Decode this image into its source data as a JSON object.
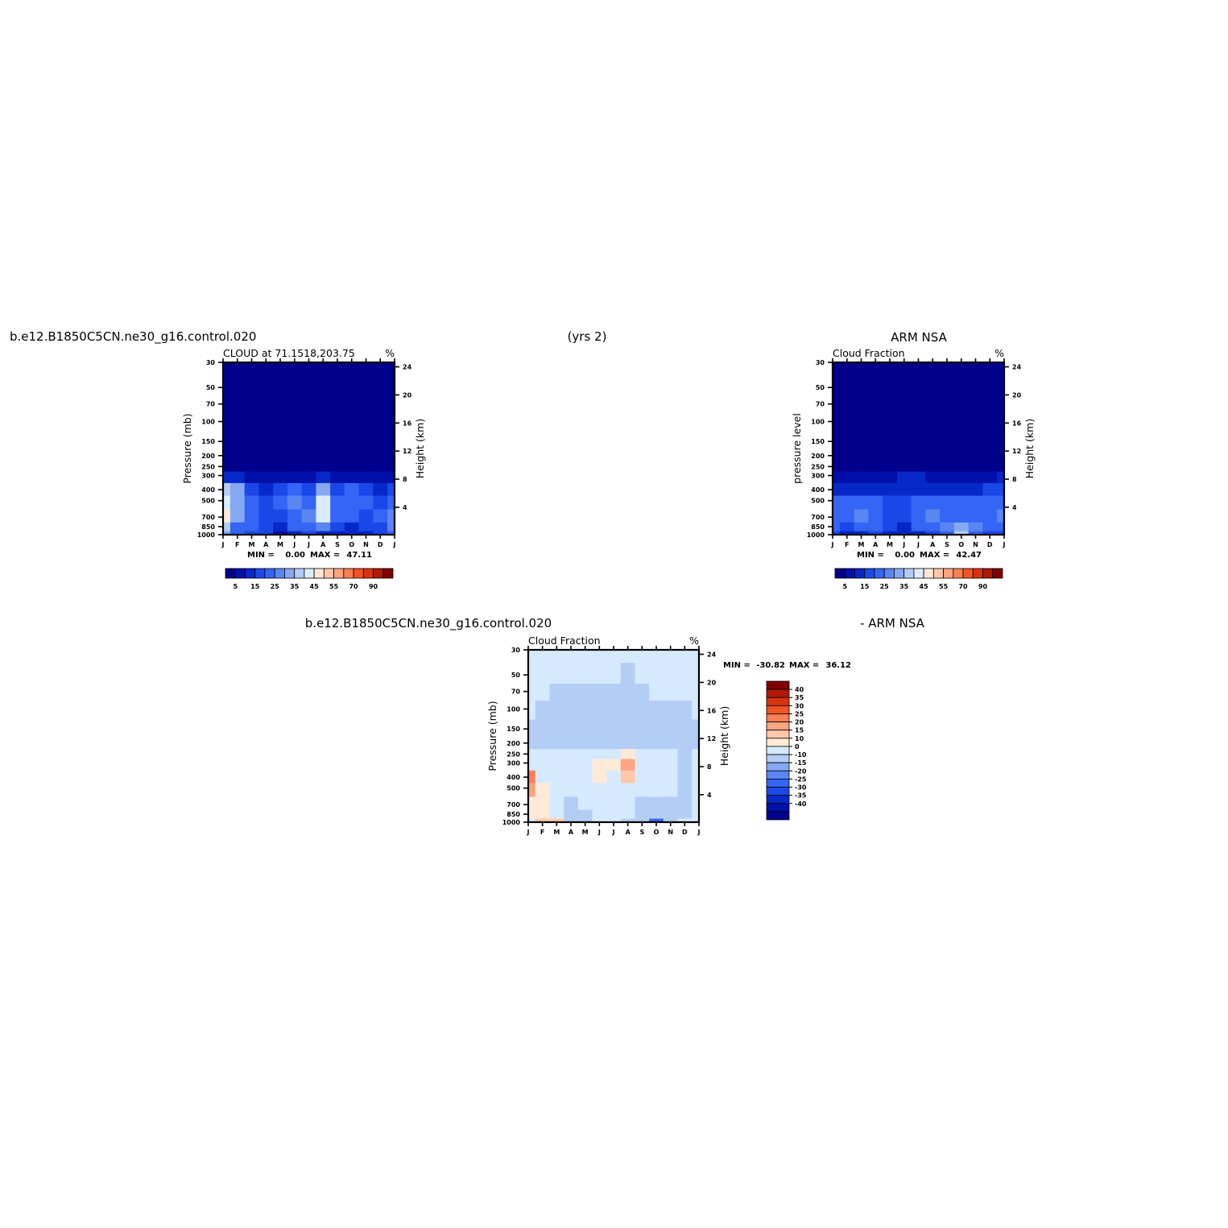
{
  "header": {
    "case_name": "b.e12.B1850C5CN.ne30_g16.control.020",
    "years": "(yrs 2)",
    "obs_name": "ARM NSA",
    "diff_case_name": "b.e12.B1850C5CN.ne30_g16.control.020",
    "diff_obs_name": "- ARM NSA"
  },
  "colors": {
    "abs_scale": [
      "#00008c",
      "#0010a8",
      "#0728c8",
      "#1a48e8",
      "#3565f5",
      "#5a86f2",
      "#86a8f2",
      "#b3cdf5",
      "#dcecff",
      "#ffe8d6",
      "#ffc7aa",
      "#fea480",
      "#fd7f54",
      "#f45326",
      "#d8340c",
      "#b01808",
      "#800000"
    ],
    "diff_scale": [
      "#00008c",
      "#0010a8",
      "#0728c8",
      "#1a48e8",
      "#3565f5",
      "#5a86f2",
      "#86a8f2",
      "#b3cdf5",
      "#d6eaff",
      "#ffead8",
      "#ffc7aa",
      "#fea480",
      "#fd7f54",
      "#f45326",
      "#d8340c",
      "#b01808",
      "#800000"
    ]
  },
  "chart_data": [
    {
      "type": "heatmap",
      "panel": "model",
      "title": "CLOUD at 71.1518,203.75",
      "units": "%",
      "xlabel": "",
      "ylabel": "Pressure (mb)",
      "ylabel_right": "Height (km)",
      "x_ticks": [
        "J",
        "F",
        "M",
        "A",
        "M",
        "J",
        "J",
        "A",
        "S",
        "O",
        "N",
        "D",
        "J"
      ],
      "y_ticks": [
        "30",
        "50",
        "70",
        "100",
        "150",
        "200",
        "250",
        "300",
        "400",
        "500",
        "700",
        "850",
        "1000"
      ],
      "y_ticks_right": [
        "24",
        "20",
        "16",
        "12",
        "8",
        "4"
      ],
      "stats": {
        "min_label": "MIN =",
        "min": "0.00",
        "max_label": "MAX =",
        "max": "47.11"
      },
      "colorbar_labels": [
        "5",
        "15",
        "25",
        "35",
        "45",
        "55",
        "70",
        "90"
      ],
      "levels": [
        1000,
        850,
        700,
        500,
        400,
        300,
        250,
        200,
        150,
        100,
        70,
        50,
        30
      ],
      "grid": [
        [
          28,
          18,
          15,
          14,
          6,
          10,
          14,
          12,
          12,
          10,
          12,
          14,
          22
        ],
        [
          36,
          22,
          20,
          14,
          10,
          18,
          22,
          26,
          16,
          12,
          14,
          16,
          26
        ],
        [
          44,
          30,
          20,
          16,
          14,
          22,
          24,
          42,
          18,
          20,
          16,
          18,
          24
        ],
        [
          40,
          32,
          18,
          14,
          18,
          26,
          22,
          38,
          20,
          22,
          18,
          16,
          22
        ],
        [
          34,
          28,
          14,
          10,
          16,
          20,
          16,
          30,
          16,
          20,
          16,
          12,
          16
        ],
        [
          10,
          8,
          6,
          5,
          6,
          6,
          6,
          8,
          6,
          6,
          4,
          3,
          4
        ],
        [
          2,
          2,
          2,
          2,
          2,
          2,
          2,
          2,
          2,
          2,
          2,
          2,
          2
        ],
        [
          0,
          0,
          0,
          0,
          0,
          0,
          0,
          0,
          0,
          0,
          0,
          0,
          0
        ],
        [
          0,
          0,
          0,
          0,
          0,
          0,
          0,
          0,
          0,
          0,
          0,
          0,
          0
        ],
        [
          0,
          0,
          0,
          0,
          0,
          0,
          0,
          0,
          0,
          0,
          0,
          0,
          0
        ],
        [
          0,
          0,
          0,
          0,
          0,
          0,
          0,
          0,
          0,
          0,
          0,
          0,
          0
        ],
        [
          0,
          0,
          0,
          0,
          0,
          0,
          0,
          0,
          0,
          0,
          0,
          0,
          0
        ],
        [
          0,
          0,
          0,
          0,
          0,
          0,
          0,
          0,
          0,
          0,
          0,
          0,
          0
        ]
      ]
    },
    {
      "type": "heatmap",
      "panel": "obs",
      "title": "Cloud Fraction",
      "units": "%",
      "xlabel": "",
      "ylabel": "pressure level",
      "ylabel_right": "Height (km)",
      "x_ticks": [
        "J",
        "F",
        "M",
        "A",
        "M",
        "J",
        "J",
        "A",
        "S",
        "O",
        "N",
        "D",
        "J"
      ],
      "y_ticks": [
        "30",
        "50",
        "70",
        "100",
        "150",
        "200",
        "250",
        "300",
        "400",
        "500",
        "700",
        "850",
        "1000"
      ],
      "y_ticks_right": [
        "24",
        "20",
        "16",
        "12",
        "8",
        "4"
      ],
      "stats": {
        "min_label": "MIN =",
        "min": "0.00",
        "max_label": "MAX =",
        "max": "42.47"
      },
      "colorbar_labels": [
        "5",
        "15",
        "25",
        "35",
        "45",
        "55",
        "70",
        "90"
      ],
      "levels": [
        1000,
        850,
        700,
        500,
        400,
        300,
        250,
        200,
        150,
        100,
        70,
        50,
        30
      ],
      "grid": [
        [
          14,
          10,
          12,
          14,
          10,
          8,
          12,
          16,
          18,
          34,
          22,
          14,
          16
        ],
        [
          20,
          16,
          20,
          22,
          14,
          12,
          18,
          22,
          24,
          30,
          24,
          20,
          20
        ],
        [
          22,
          20,
          24,
          22,
          16,
          14,
          20,
          24,
          22,
          22,
          20,
          22,
          24
        ],
        [
          18,
          18,
          20,
          18,
          16,
          14,
          18,
          20,
          18,
          18,
          18,
          20,
          20
        ],
        [
          12,
          10,
          10,
          12,
          12,
          12,
          12,
          12,
          10,
          10,
          12,
          14,
          14
        ],
        [
          6,
          4,
          3,
          4,
          6,
          8,
          8,
          6,
          4,
          4,
          5,
          6,
          8
        ],
        [
          2,
          2,
          2,
          2,
          2,
          2,
          2,
          2,
          2,
          2,
          2,
          2,
          2
        ],
        [
          0,
          0,
          0,
          0,
          0,
          0,
          0,
          0,
          0,
          0,
          0,
          0,
          0
        ],
        [
          0,
          0,
          0,
          0,
          0,
          0,
          0,
          0,
          0,
          0,
          0,
          0,
          0
        ],
        [
          0,
          0,
          0,
          0,
          0,
          0,
          0,
          0,
          0,
          0,
          0,
          0,
          0
        ],
        [
          0,
          0,
          0,
          0,
          0,
          0,
          0,
          0,
          0,
          0,
          0,
          0,
          0
        ],
        [
          0,
          0,
          0,
          0,
          0,
          0,
          0,
          0,
          0,
          0,
          0,
          0,
          0
        ],
        [
          0,
          0,
          0,
          0,
          0,
          0,
          0,
          0,
          0,
          0,
          0,
          0,
          0
        ]
      ]
    },
    {
      "type": "heatmap",
      "panel": "difference",
      "title": "Cloud Fraction",
      "units": "%",
      "xlabel": "",
      "ylabel": "Pressure (mb)",
      "ylabel_right": "Height (km)",
      "x_ticks": [
        "J",
        "F",
        "M",
        "A",
        "M",
        "J",
        "J",
        "A",
        "S",
        "O",
        "N",
        "D",
        "J"
      ],
      "y_ticks": [
        "30",
        "50",
        "70",
        "100",
        "150",
        "200",
        "250",
        "300",
        "400",
        "500",
        "700",
        "850",
        "1000"
      ],
      "y_ticks_right": [
        "24",
        "20",
        "16",
        "12",
        "8",
        "4"
      ],
      "stats": {
        "min_label": "MIN =",
        "min": "-30.82",
        "max_label": "MAX =",
        "max": "36.12"
      },
      "colorbar_labels": [
        "40",
        "35",
        "30",
        "25",
        "20",
        "15",
        "10",
        "0",
        "-10",
        "-15",
        "-20",
        "-25",
        "-30",
        "-35",
        "-40"
      ],
      "levels": [
        1000,
        850,
        700,
        500,
        400,
        300,
        250,
        200,
        150,
        100,
        70,
        50,
        30
      ],
      "grid": [
        [
          8,
          15,
          18,
          -2,
          -8,
          2,
          2,
          -2,
          -2,
          -22,
          -8,
          2,
          6
        ],
        [
          12,
          10,
          4,
          -6,
          -4,
          4,
          2,
          2,
          -2,
          -6,
          -8,
          -2,
          4
        ],
        [
          14,
          12,
          2,
          -4,
          2,
          4,
          6,
          4,
          -4,
          -2,
          -2,
          -2,
          2
        ],
        [
          20,
          10,
          2,
          0,
          2,
          6,
          4,
          6,
          2,
          2,
          0,
          -2,
          2
        ],
        [
          28,
          8,
          4,
          2,
          2,
          12,
          6,
          18,
          6,
          4,
          2,
          -2,
          2
        ],
        [
          6,
          4,
          2,
          2,
          4,
          10,
          12,
          22,
          8,
          2,
          2,
          -2,
          4
        ],
        [
          2,
          2,
          2,
          2,
          2,
          6,
          8,
          10,
          4,
          2,
          2,
          -1,
          2
        ],
        [
          -2,
          -2,
          -2,
          -2,
          -2,
          -2,
          -2,
          -2,
          -2,
          -2,
          -2,
          -2,
          -2
        ],
        [
          -2,
          -2,
          -2,
          -2,
          -2,
          -2,
          -2,
          -2,
          -2,
          -2,
          -2,
          -2,
          -2
        ],
        [
          2,
          -2,
          -2,
          -2,
          -2,
          -2,
          -2,
          -2,
          -2,
          -2,
          -2,
          -2,
          2
        ],
        [
          2,
          2,
          -2,
          -2,
          -2,
          -2,
          -2,
          -2,
          -2,
          2,
          2,
          2,
          2
        ],
        [
          2,
          2,
          2,
          2,
          2,
          2,
          2,
          -2,
          2,
          2,
          2,
          2,
          2
        ],
        [
          2,
          2,
          2,
          2,
          2,
          2,
          2,
          2,
          2,
          2,
          2,
          2,
          2
        ]
      ]
    }
  ]
}
